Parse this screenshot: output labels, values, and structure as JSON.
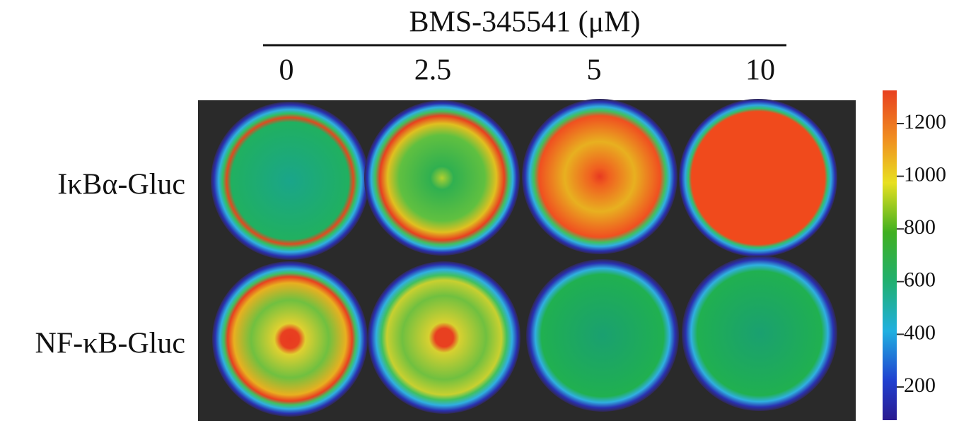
{
  "header": {
    "title": "BMS-345541 (μM)",
    "concentrations": [
      0,
      2.5,
      5,
      10
    ]
  },
  "rows": [
    "IκBα-Gluc",
    "NF-κB-Gluc"
  ],
  "colorbar": {
    "lim": [
      74,
      1326
    ],
    "ticks": [
      200,
      400,
      600,
      800,
      1000,
      1200
    ]
  }
}
